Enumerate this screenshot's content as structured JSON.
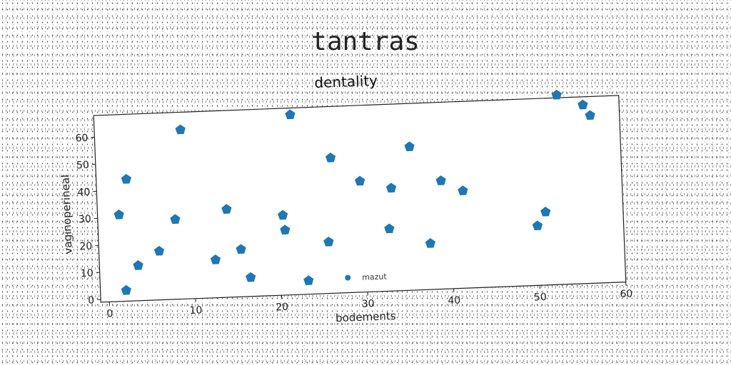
{
  "suptitle": "tantras",
  "chart_data": {
    "type": "scatter",
    "title": "dentality",
    "xlabel": "bodements",
    "ylabel": "vaginoperineal",
    "xlim": [
      -1,
      60
    ],
    "ylim": [
      -1,
      68
    ],
    "xticks": [
      0,
      10,
      20,
      30,
      40,
      50,
      60
    ],
    "yticks": [
      0,
      10,
      20,
      30,
      40,
      50,
      60
    ],
    "grid": false,
    "legend_position": "bottom-center",
    "marker_color": "#1f77b4",
    "marker": "pentagon",
    "series": [
      {
        "name": "mazut",
        "x": [
          1.5,
          2,
          2.5,
          3.5,
          6,
          8,
          9,
          12.5,
          14,
          15.5,
          16.5,
          20.5,
          20.7,
          21.8,
          23.2,
          25.7,
          26.3,
          29.6,
          32.8,
          33.2,
          35.5,
          37.5,
          39,
          41.5,
          50,
          51,
          52.8,
          55.8,
          56.6
        ],
        "y": [
          31,
          3,
          44,
          12,
          17,
          28.5,
          61.5,
          13,
          31.5,
          16.5,
          6,
          28.5,
          23,
          65.5,
          4,
          18,
          49,
          40,
          22,
          37,
          52,
          16,
          39,
          35,
          21,
          26,
          69,
          65,
          61
        ]
      }
    ]
  }
}
